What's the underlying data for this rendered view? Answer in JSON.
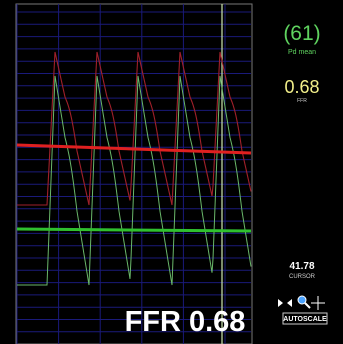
{
  "readouts": {
    "pd_mean": {
      "value": "(61)",
      "label": "Pd mean"
    },
    "ffr": {
      "value": "0.68",
      "label": "FFR"
    },
    "cursor": {
      "value": "41.78",
      "label": "CURSOR"
    }
  },
  "controls": {
    "autoscale": "AUTOSCALE"
  },
  "overlay": {
    "ffr_banner": "FFR 0.68"
  }
}
